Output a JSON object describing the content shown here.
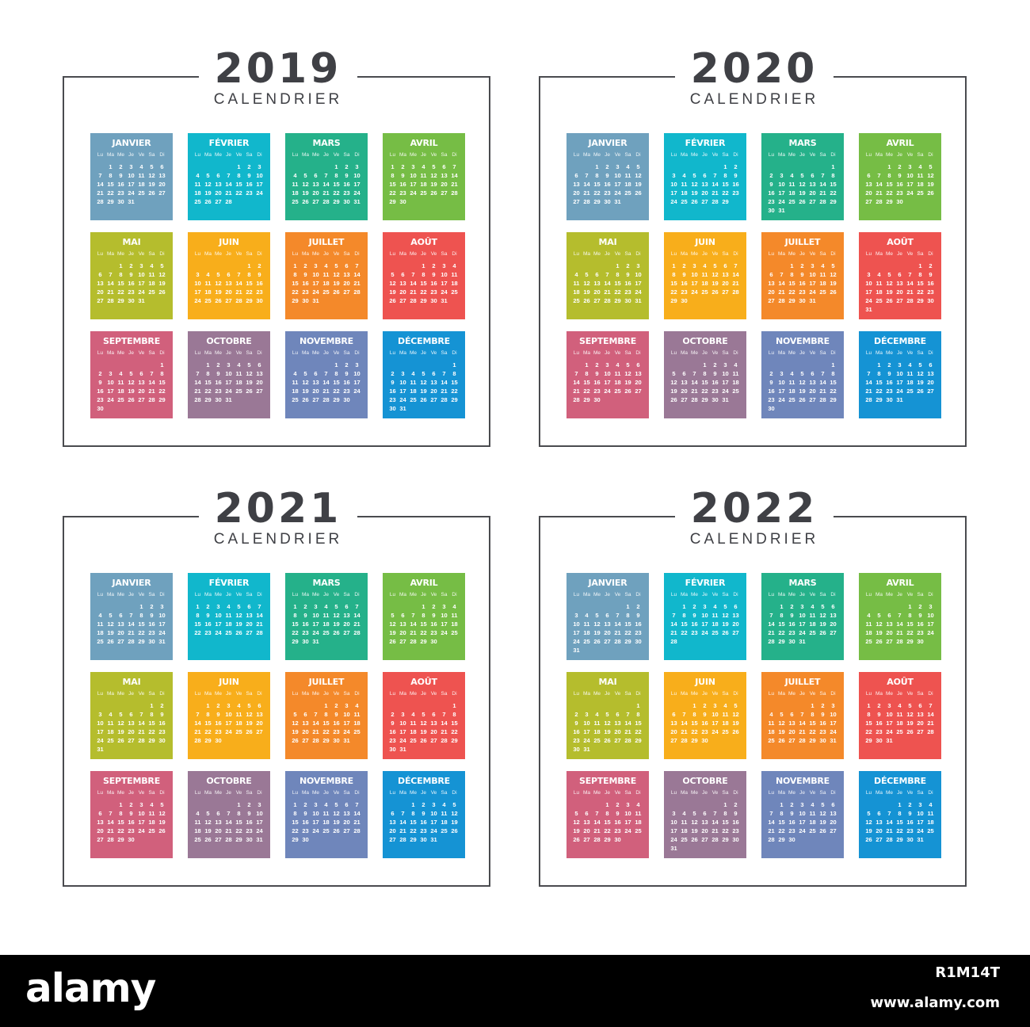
{
  "subtitle": "CALENDRIER",
  "weekday_labels": [
    "Lu",
    "Ma",
    "Me",
    "Je",
    "Ve",
    "Sa",
    "Di"
  ],
  "month_names": [
    "JANVIER",
    "FÉVRIER",
    "MARS",
    "AVRIL",
    "MAI",
    "JUIN",
    "JUILLET",
    "AOÛT",
    "SEPTEMBRE",
    "OCTOBRE",
    "NOVEMBRE",
    "DÉCEMBRE"
  ],
  "month_colors": [
    "#6fa1be",
    "#11b7cc",
    "#25b18a",
    "#76bd45",
    "#b5bd2d",
    "#f8ae1b",
    "#f4892a",
    "#ee5350",
    "#d1607c",
    "#9a7896",
    "#6f86bb",
    "#1593d4"
  ],
  "calendars": [
    {
      "year": "2019",
      "first_weekdays": [
        1,
        4,
        4,
        0,
        2,
        5,
        0,
        3,
        6,
        1,
        4,
        6
      ],
      "day_counts": [
        31,
        28,
        31,
        30,
        31,
        30,
        31,
        31,
        30,
        31,
        30,
        31
      ]
    },
    {
      "year": "2020",
      "first_weekdays": [
        2,
        5,
        6,
        2,
        4,
        0,
        2,
        5,
        1,
        3,
        6,
        1
      ],
      "day_counts": [
        31,
        29,
        31,
        30,
        31,
        30,
        31,
        31,
        30,
        31,
        30,
        31
      ]
    },
    {
      "year": "2021",
      "first_weekdays": [
        4,
        0,
        0,
        3,
        5,
        1,
        3,
        6,
        2,
        4,
        0,
        2
      ],
      "day_counts": [
        31,
        28,
        31,
        30,
        31,
        30,
        31,
        31,
        30,
        31,
        30,
        31
      ]
    },
    {
      "year": "2022",
      "first_weekdays": [
        5,
        1,
        1,
        4,
        6,
        2,
        4,
        0,
        3,
        5,
        1,
        3
      ],
      "day_counts": [
        31,
        28,
        31,
        30,
        31,
        30,
        31,
        31,
        30,
        31,
        30,
        31
      ]
    }
  ],
  "watermark": {
    "logo": "alamy",
    "stock_id": "R1M14T",
    "url": "www.alamy.com"
  }
}
